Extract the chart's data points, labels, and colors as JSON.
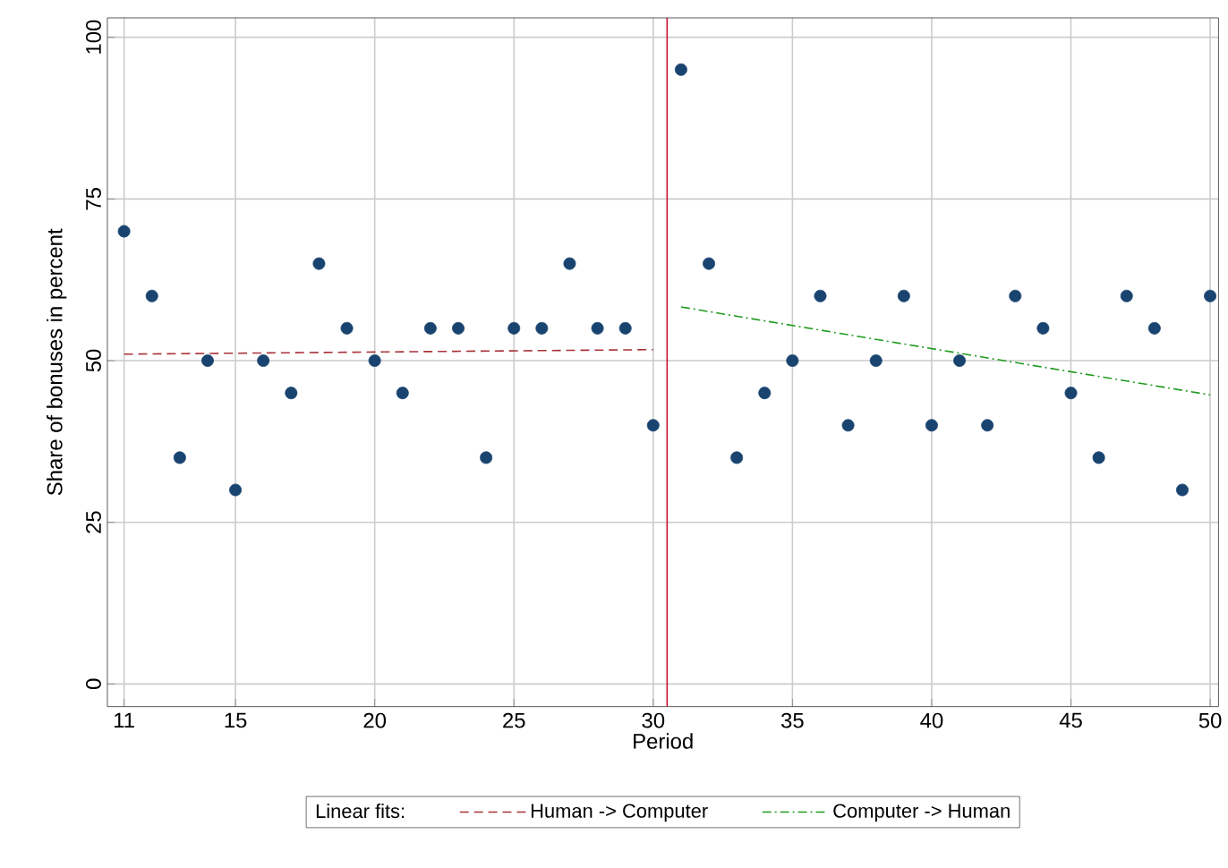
{
  "chart_data": {
    "type": "scatter",
    "xlabel": "Period",
    "ylabel": "Share of bonuses in percent",
    "legend_title": "Linear fits:",
    "x": [
      11,
      12,
      13,
      14,
      15,
      16,
      17,
      18,
      19,
      20,
      21,
      22,
      23,
      24,
      25,
      26,
      27,
      28,
      29,
      30,
      31,
      32,
      33,
      34,
      35,
      36,
      37,
      38,
      39,
      40,
      41,
      42,
      43,
      44,
      45,
      46,
      47,
      48,
      49,
      50
    ],
    "series": [
      {
        "color": "#1a4470",
        "marker": "circle",
        "values": [
          70,
          60,
          35,
          50,
          30,
          50,
          45,
          65,
          55,
          50,
          45,
          55,
          55,
          35,
          55,
          55,
          65,
          55,
          55,
          40,
          95,
          65,
          35,
          45,
          50,
          60,
          40,
          50,
          60,
          40,
          50,
          40,
          60,
          55,
          45,
          35,
          60,
          55,
          30,
          60
        ]
      },
      {
        "type": "line",
        "name": "Human -> Computer",
        "color": "#a8323a",
        "line_style": "dashed",
        "marker": "none",
        "x": [
          11,
          30
        ],
        "values": [
          51,
          51.7
        ]
      },
      {
        "type": "line",
        "name": "Computer -> Human",
        "color": "#1f9a1f",
        "line_style": "dashdot",
        "marker": "none",
        "x": [
          31,
          50
        ],
        "values": [
          58.3,
          44.7
        ]
      }
    ],
    "xlim": [
      10.4,
      50.3
    ],
    "ylim": [
      -3.5,
      103
    ],
    "xticks": [
      11,
      15,
      20,
      25,
      30,
      35,
      40,
      45,
      50
    ],
    "yticks": [
      0,
      25,
      50,
      75,
      100
    ],
    "grid": true,
    "legend": "bottom",
    "ref_lines": [
      {
        "axis": "x",
        "value": 30.5,
        "color": "#c8102e",
        "line_style": "solid"
      }
    ]
  }
}
